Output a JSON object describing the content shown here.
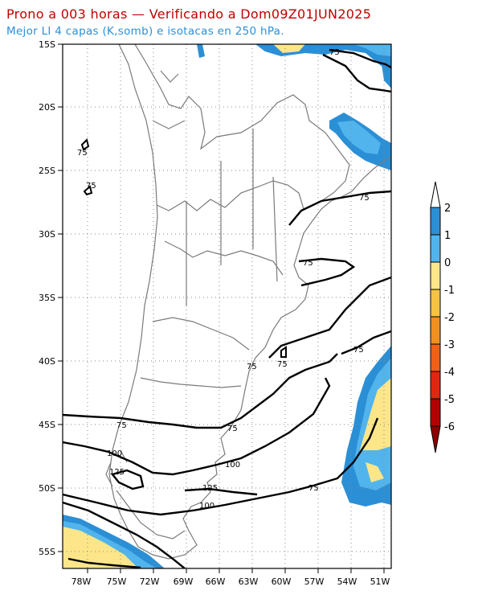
{
  "header": {
    "title": "Prono a 003 horas — Verificando a Dom09Z01JUN2025",
    "subtitle": "Mejor LI 4 capas (K,somb) e isotacas en 250 hPa."
  },
  "map": {
    "lat_labels": [
      "15S",
      "20S",
      "25S",
      "30S",
      "35S",
      "40S",
      "45S",
      "50S",
      "55S"
    ],
    "lon_labels": [
      "78W",
      "75W",
      "72W",
      "69W",
      "66W",
      "63W",
      "60W",
      "57W",
      "54W",
      "51W"
    ],
    "lat_range": [
      -56.5,
      -15
    ],
    "lon_range": [
      -80,
      -50
    ],
    "isotach_labels": [
      "75",
      "75",
      "75",
      "75",
      "75",
      "75",
      "75",
      "75",
      "75",
      "75",
      "75",
      "100",
      "100",
      "100",
      "125",
      "125"
    ]
  },
  "colorbar": {
    "labels": [
      "2",
      "1",
      "0",
      "-1",
      "-2",
      "-3",
      "-4",
      "-5",
      "-6"
    ],
    "colors": [
      "#ffffff",
      "#2b8fd6",
      "#52b4ec",
      "#fde68a",
      "#f5c242",
      "#f0901e",
      "#f06016",
      "#e02810",
      "#b40000",
      "#8c0000"
    ]
  }
}
